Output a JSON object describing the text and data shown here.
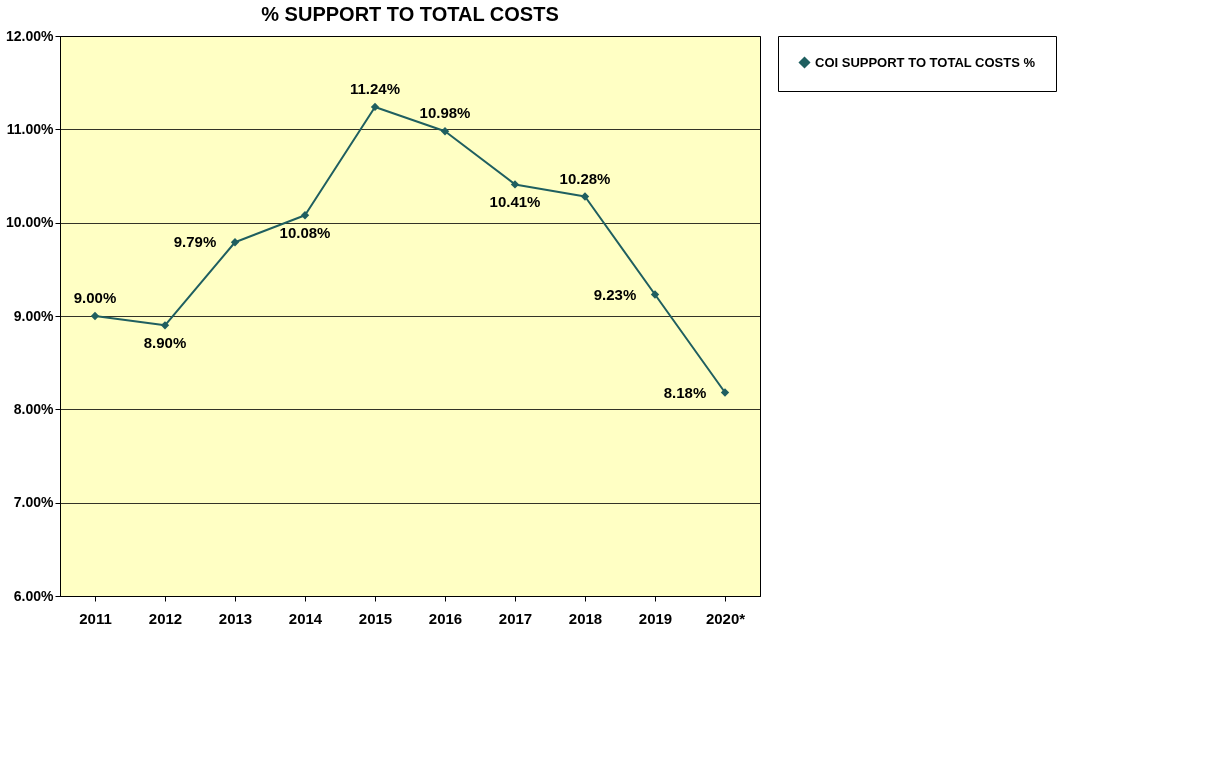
{
  "chart_data": {
    "type": "line",
    "title": "% SUPPORT TO TOTAL COSTS",
    "categories": [
      "2011",
      "2012",
      "2013",
      "2014",
      "2015",
      "2016",
      "2017",
      "2018",
      "2019",
      "2020*"
    ],
    "series": [
      {
        "name": "COI SUPPORT TO TOTAL COSTS %",
        "color": "#1f5f60",
        "values": [
          9.0,
          8.9,
          9.79,
          10.08,
          11.24,
          10.98,
          10.41,
          10.28,
          9.23,
          8.18
        ]
      }
    ],
    "value_labels": [
      "9.00%",
      "8.90%",
      "9.79%",
      "10.08%",
      "11.24%",
      "10.98%",
      "10.41%",
      "10.28%",
      "9.23%",
      "8.18%"
    ],
    "ylim": [
      6,
      12
    ],
    "yticks": [
      {
        "value": 6,
        "label": "6.00%"
      },
      {
        "value": 7,
        "label": "7.00%"
      },
      {
        "value": 8,
        "label": "8.00%"
      },
      {
        "value": 9,
        "label": "9.00%"
      },
      {
        "value": 10,
        "label": "10.00%"
      },
      {
        "value": 11,
        "label": "11.00%"
      },
      {
        "value": 12,
        "label": "12.00%"
      }
    ],
    "grid": "y",
    "legend": "right",
    "marker": "diamond",
    "line_style": "solid"
  }
}
